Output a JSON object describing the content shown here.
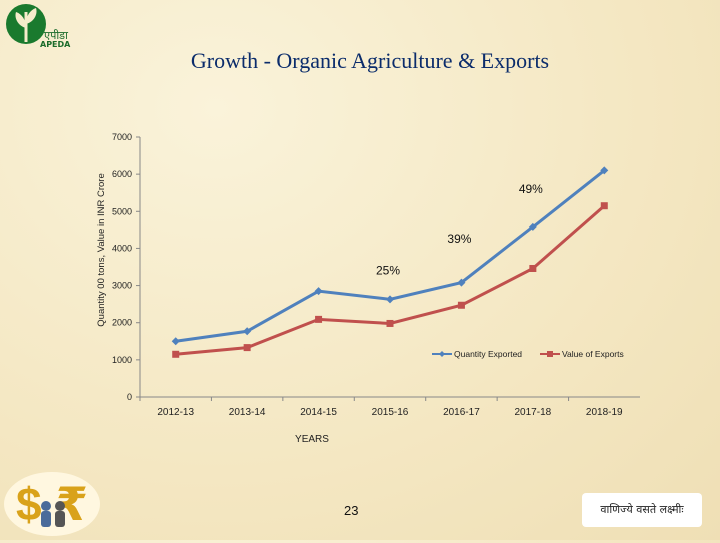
{
  "header": {
    "org_hindi": "एपीडा",
    "org_name": "APEDA",
    "title": "Growth - Organic Agriculture & Exports"
  },
  "footer": {
    "page_number": "23",
    "motto": "वाणिज्ये वसते लक्ष्मीः"
  },
  "colors": {
    "title": "#0b2c6b",
    "quantity_series": "#4f81bd",
    "value_series": "#c0504d"
  },
  "icons": [
    "plant-logo-icon",
    "currency-dollar-rupee-icon"
  ],
  "chart_data": {
    "type": "line",
    "title": "",
    "xlabel": "YEARS",
    "ylabel": "Quantity 00 tons, Value in INR Crore",
    "ylim": [
      0,
      7000
    ],
    "yticks": [
      0,
      1000,
      2000,
      3000,
      4000,
      5000,
      6000,
      7000
    ],
    "categories": [
      "2012-13",
      "2013-14",
      "2014-15",
      "2015-16",
      "2016-17",
      "2017-18",
      "2018-19"
    ],
    "series": [
      {
        "name": "Quantity Exported",
        "color": "#4f81bd",
        "marker": "diamond",
        "values": [
          1500,
          1770,
          2850,
          2630,
          3080,
          4580,
          6100
        ]
      },
      {
        "name": "Value of Exports",
        "color": "#c0504d",
        "marker": "square",
        "values": [
          1150,
          1330,
          2090,
          1980,
          2470,
          3460,
          5150
        ]
      }
    ],
    "annotations": [
      {
        "text": "25%",
        "x": "2015-16",
        "y": 3400
      },
      {
        "text": "39%",
        "x": "2016-17",
        "y": 4250
      },
      {
        "text": "49%",
        "x": "2017-18",
        "y": 5600
      }
    ],
    "legend": "inside-lower-right",
    "grid": false
  }
}
